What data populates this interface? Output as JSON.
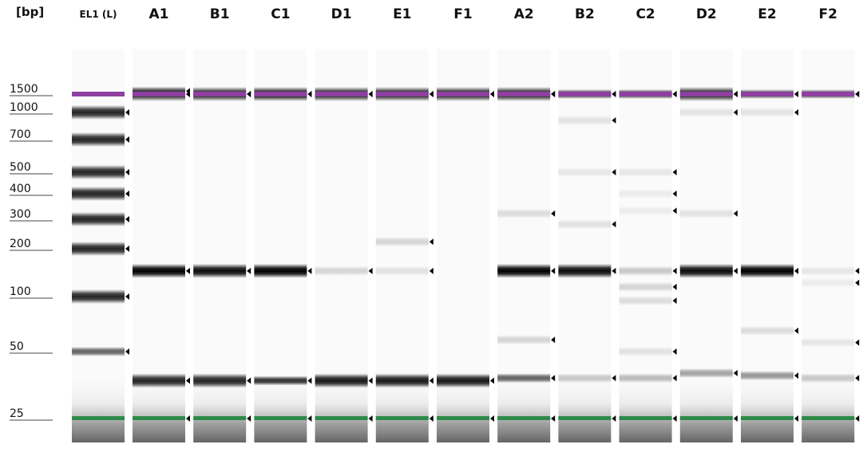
{
  "unit_label": "[bp]",
  "chart_data": {
    "type": "gel",
    "y_unit": "bp",
    "ladder": {
      "name": "EL1 (L)",
      "bands_bp": [
        1500,
        1000,
        700,
        500,
        400,
        300,
        200,
        100,
        50,
        25
      ],
      "tick_labels": [
        "1500",
        "1000",
        "700",
        "500",
        "400",
        "300",
        "200",
        "100",
        "50",
        "25"
      ]
    },
    "upper_marker_bp": 1500,
    "lower_marker_bp": 25,
    "colors": {
      "upper_marker": "#8e3fa0",
      "lower_marker": "#2e8a4a"
    },
    "samples": [
      {
        "name": "A1",
        "bands": [
          {
            "bp": 1500,
            "i": 0.85
          },
          {
            "bp": 1600,
            "i": 0.25
          },
          {
            "bp": 145,
            "i": 1.0
          },
          {
            "bp": 37,
            "i": 0.85
          }
        ]
      },
      {
        "name": "B1",
        "bands": [
          {
            "bp": 1500,
            "i": 0.85
          },
          {
            "bp": 145,
            "i": 0.95
          },
          {
            "bp": 37,
            "i": 0.85
          }
        ]
      },
      {
        "name": "C1",
        "bands": [
          {
            "bp": 1500,
            "i": 0.9
          },
          {
            "bp": 145,
            "i": 1.0
          },
          {
            "bp": 37,
            "i": 0.8
          }
        ]
      },
      {
        "name": "D1",
        "bands": [
          {
            "bp": 1500,
            "i": 0.85
          },
          {
            "bp": 145,
            "i": 0.15
          },
          {
            "bp": 37,
            "i": 0.9
          }
        ]
      },
      {
        "name": "E1",
        "bands": [
          {
            "bp": 1500,
            "i": 0.85
          },
          {
            "bp": 220,
            "i": 0.15
          },
          {
            "bp": 145,
            "i": 0.1
          },
          {
            "bp": 37,
            "i": 0.9
          }
        ]
      },
      {
        "name": "F1",
        "bands": [
          {
            "bp": 1500,
            "i": 0.85
          },
          {
            "bp": 37,
            "i": 0.9
          }
        ]
      },
      {
        "name": "A2",
        "bands": [
          {
            "bp": 1500,
            "i": 0.85
          },
          {
            "bp": 320,
            "i": 0.12
          },
          {
            "bp": 145,
            "i": 1.0
          },
          {
            "bp": 58,
            "i": 0.15
          },
          {
            "bp": 38,
            "i": 0.6
          }
        ]
      },
      {
        "name": "B2",
        "bands": [
          {
            "bp": 1500,
            "i": 0.8
          },
          {
            "bp": 900,
            "i": 0.1
          },
          {
            "bp": 500,
            "i": 0.08
          },
          {
            "bp": 280,
            "i": 0.1
          },
          {
            "bp": 145,
            "i": 0.95
          },
          {
            "bp": 38,
            "i": 0.2
          }
        ]
      },
      {
        "name": "C2",
        "bands": [
          {
            "bp": 1500,
            "i": 0.8
          },
          {
            "bp": 500,
            "i": 0.08
          },
          {
            "bp": 400,
            "i": 0.06
          },
          {
            "bp": 330,
            "i": 0.06
          },
          {
            "bp": 145,
            "i": 0.2
          },
          {
            "bp": 115,
            "i": 0.15
          },
          {
            "bp": 95,
            "i": 0.12
          },
          {
            "bp": 50,
            "i": 0.1
          },
          {
            "bp": 38,
            "i": 0.25
          }
        ]
      },
      {
        "name": "D2",
        "bands": [
          {
            "bp": 1500,
            "i": 0.85
          },
          {
            "bp": 1000,
            "i": 0.1
          },
          {
            "bp": 320,
            "i": 0.1
          },
          {
            "bp": 145,
            "i": 0.95
          },
          {
            "bp": 40,
            "i": 0.35
          }
        ]
      },
      {
        "name": "E2",
        "bands": [
          {
            "bp": 1500,
            "i": 0.75
          },
          {
            "bp": 1000,
            "i": 0.1
          },
          {
            "bp": 145,
            "i": 1.0
          },
          {
            "bp": 65,
            "i": 0.12
          },
          {
            "bp": 39,
            "i": 0.4
          }
        ]
      },
      {
        "name": "F2",
        "bands": [
          {
            "bp": 1500,
            "i": 0.7
          },
          {
            "bp": 145,
            "i": 0.08
          },
          {
            "bp": 122,
            "i": 0.06
          },
          {
            "bp": 56,
            "i": 0.08
          },
          {
            "bp": 38,
            "i": 0.2
          }
        ]
      }
    ]
  }
}
